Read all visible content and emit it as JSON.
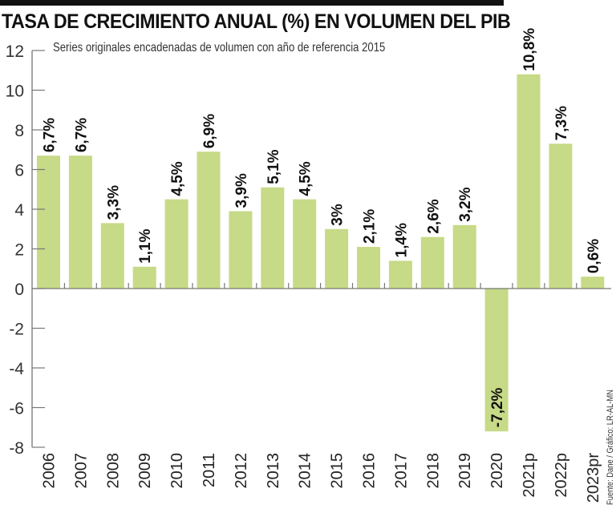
{
  "chart_data": {
    "type": "bar",
    "title": "TASA DE CRECIMIENTO ANUAL (%) EN VOLUMEN DEL PIB",
    "subtitle": "Series originales encadenadas de volumen con año de referencia 2015",
    "source": "Fuente: Dane / Gráfico: LR-AL-MN",
    "categories": [
      "2006",
      "2007",
      "2008",
      "2009",
      "2010",
      "2011",
      "2012",
      "2013",
      "2014",
      "2015",
      "2016",
      "2017",
      "2018",
      "2019",
      "2020",
      "2021p",
      "2022p",
      "2023pr"
    ],
    "values": [
      6.7,
      6.7,
      3.3,
      1.1,
      4.5,
      6.9,
      3.9,
      5.1,
      4.5,
      3,
      2.1,
      1.4,
      2.6,
      3.2,
      -7.2,
      10.8,
      7.3,
      0.6
    ],
    "labels": [
      "6,7%",
      "6,7%",
      "3,3%",
      "1,1%",
      "4,5%",
      "6,9%",
      "3,9%",
      "5,1%",
      "4,5%",
      "3%",
      "2,1%",
      "1,4%",
      "2,6%",
      "3,2%",
      "-7,2%",
      "10,8%",
      "7,3%",
      "0,6%"
    ],
    "yticks": [
      12,
      10,
      8,
      6,
      4,
      2,
      0,
      -2,
      -4,
      -6,
      -8
    ],
    "ylim": [
      -8,
      12
    ],
    "xlabel": "",
    "ylabel": "",
    "bar_color": "#c6da87",
    "grid": false
  }
}
